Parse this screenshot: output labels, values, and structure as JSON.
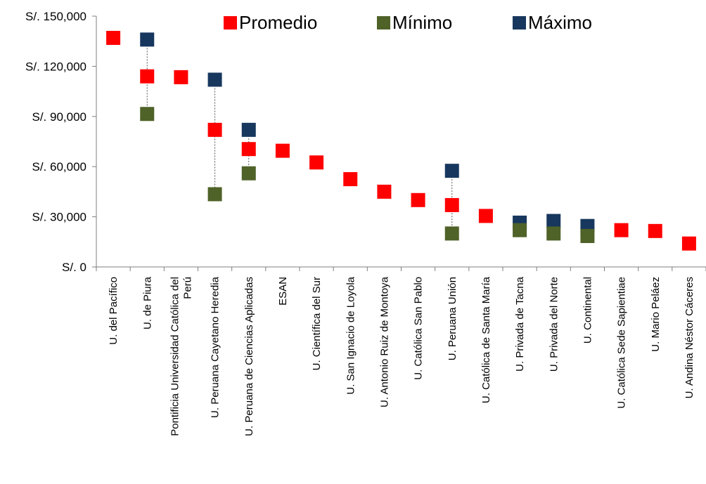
{
  "chart_data": {
    "type": "scatter",
    "title": "",
    "xlabel": "",
    "ylabel": "",
    "ylim": [
      0,
      150000
    ],
    "yticks": [
      0,
      30000,
      60000,
      90000,
      120000,
      150000
    ],
    "ytick_labels": [
      "S/. 0",
      "S/. 30,000",
      "S/. 60,000",
      "S/. 90,000",
      "S/. 120,000",
      "S/. 150,000"
    ],
    "legend_position": "top",
    "grid": false,
    "categories": [
      "U. del Pacífico",
      "U. de Piura",
      "Pontificia Universidad Católica del Perú",
      "U. Peruana Cayetano Heredia",
      "U. Peruana de Ciencias Aplicadas",
      "ESAN",
      "U. Científica del Sur",
      "U. San Ignacio de Loyola",
      "U. Antonio Ruiz de Montoya",
      "U. Católica San Pablo",
      "U. Peruana Unión",
      "U. Católica de Santa María",
      "U. Privada de Tacna",
      "U. Privada del Norte",
      "U. Continental",
      "U. Católica Sede Sapientiae",
      "U. Mario Peláez",
      "U. Andina Néstor Cáceres"
    ],
    "category_lines": [
      [
        "U. del Pacífico"
      ],
      [
        "U. de Piura"
      ],
      [
        "Pontificia Universidad Católica del",
        "Perú"
      ],
      [
        "U. Peruana Cayetano Heredia"
      ],
      [
        "U. Peruana de Ciencias Aplicadas"
      ],
      [
        "ESAN"
      ],
      [
        "U. Científica del Sur"
      ],
      [
        "U. San Ignacio de Loyola"
      ],
      [
        "U. Antonio Ruiz de Montoya"
      ],
      [
        "U. Católica San Pablo"
      ],
      [
        "U. Peruana Unión"
      ],
      [
        "U. Católica de Santa María"
      ],
      [
        "U. Privada de Tacna"
      ],
      [
        "U. Privada del Norte"
      ],
      [
        "U. Continental"
      ],
      [
        "U. Católica Sede Sapientiae"
      ],
      [
        "U. Mario Peláez"
      ],
      [
        "U. Andina Néstor Cáceres"
      ]
    ],
    "series": [
      {
        "name": "Promedio",
        "color": "#ff0000",
        "values": [
          137000,
          114000,
          113500,
          82000,
          70500,
          69500,
          62500,
          52500,
          45000,
          40000,
          37000,
          30500,
          null,
          null,
          null,
          22000,
          21500,
          14000
        ]
      },
      {
        "name": "Mínimo",
        "color": "#4f6228",
        "values": [
          null,
          91500,
          null,
          43500,
          56000,
          null,
          null,
          null,
          null,
          null,
          20000,
          null,
          22000,
          20000,
          18500,
          null,
          null,
          null
        ]
      },
      {
        "name": "Máximo",
        "color": "#17375e",
        "values": [
          null,
          136000,
          null,
          112000,
          82000,
          null,
          null,
          null,
          null,
          null,
          57500,
          null,
          26500,
          27500,
          24500,
          null,
          null,
          null
        ]
      }
    ],
    "range_line_color": "#555555"
  }
}
